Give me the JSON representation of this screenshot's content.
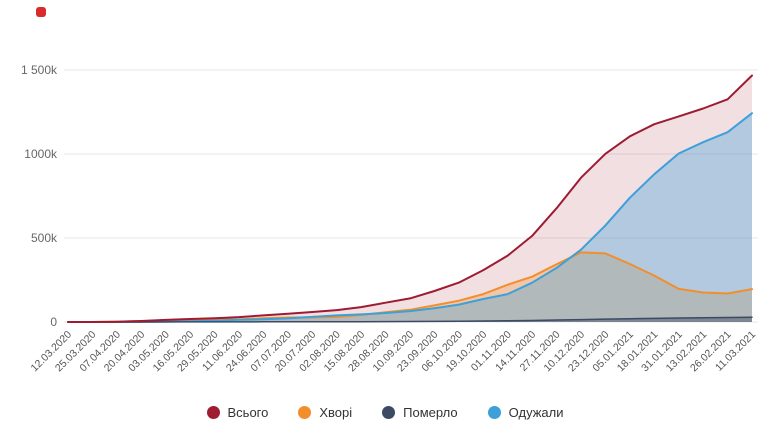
{
  "logo": {
    "color": "#d92b2b"
  },
  "chart_data": {
    "type": "area",
    "title": "",
    "xlabel": "",
    "ylabel": "",
    "ylim": [
      0,
      1500
    ],
    "y_unit": "thousands",
    "grid": true,
    "legend_position": "bottom",
    "y_ticks": [
      {
        "value": 0,
        "label": "0"
      },
      {
        "value": 500,
        "label": "500k"
      },
      {
        "value": 1000,
        "label": "1000k"
      },
      {
        "value": 1500,
        "label": "1 500k"
      }
    ],
    "x_labels": [
      "12.03.2020",
      "25.03.2020",
      "07.04.2020",
      "20.04.2020",
      "03.05.2020",
      "16.05.2020",
      "29.05.2020",
      "11.06.2020",
      "24.06.2020",
      "07.07.2020",
      "20.07.2020",
      "02.08.2020",
      "15.08.2020",
      "28.08.2020",
      "10.09.2020",
      "23.09.2020",
      "06.10.2020",
      "19.10.2020",
      "01.11.2020",
      "14.11.2020",
      "27.11.2020",
      "10.12.2020",
      "23.12.2020",
      "05.01.2021",
      "18.01.2021",
      "31.01.2021",
      "13.02.2021",
      "26.02.2021",
      "11.03.2021"
    ],
    "series": [
      {
        "name": "Всього",
        "color": "#9e1b32",
        "fill": "rgba(158,27,50,0.14)",
        "values": [
          0.003,
          0.145,
          1.5,
          5.7,
          12.3,
          17.9,
          22.8,
          29.1,
          39.0,
          49.6,
          59.5,
          71.1,
          88.5,
          114.7,
          140.5,
          184.7,
          234.6,
          309.1,
          395.4,
          512.7,
          677.2,
          858.7,
          1001.1,
          1105.2,
          1177.6,
          1223.9,
          1271.1,
          1325.8,
          1467.5
        ]
      },
      {
        "name": "Хворі",
        "color": "#f28e2b",
        "fill": "rgba(242,142,43,0.30)",
        "values": [
          0.003,
          0.14,
          1.4,
          5.4,
          10.4,
          12.4,
          14.3,
          15.2,
          22.0,
          26.6,
          27.4,
          30.3,
          41.4,
          58.6,
          72.5,
          99.0,
          126.5,
          166.2,
          222.0,
          269.5,
          343.3,
          414.0,
          408.6,
          345.4,
          276.3,
          197.0,
          175.5,
          169.5,
          196.0
        ]
      },
      {
        "name": "Померло",
        "color": "#3c4a63",
        "fill": "rgba(60,74,99,0.45)",
        "values": [
          0,
          0.005,
          0.045,
          0.15,
          0.3,
          0.5,
          0.7,
          0.87,
          1.0,
          1.3,
          1.5,
          1.7,
          2.0,
          2.4,
          2.9,
          3.7,
          4.5,
          5.8,
          7.2,
          9.2,
          11.7,
          14.5,
          17.4,
          19.8,
          21.7,
          24.0,
          25.5,
          26.5,
          28.5
        ]
      },
      {
        "name": "Одужали",
        "color": "#3da0d9",
        "fill": "rgba(61,160,217,0.35)",
        "values": [
          0,
          0,
          0.02,
          0.3,
          1.6,
          5.0,
          7.8,
          13.0,
          16.0,
          21.7,
          30.6,
          39.1,
          45.1,
          53.7,
          65.1,
          82.0,
          103.6,
          137.1,
          166.2,
          234.0,
          322.2,
          430.2,
          575.1,
          740.0,
          879.6,
          1002.9,
          1070.1,
          1129.8,
          1243.0
        ]
      }
    ]
  }
}
